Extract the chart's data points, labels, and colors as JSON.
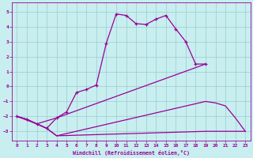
{
  "xlabel": "Windchill (Refroidissement éolien,°C)",
  "background_color": "#c8eef0",
  "grid_color": "#99cccc",
  "line_color": "#990099",
  "xlim": [
    -0.5,
    23.5
  ],
  "ylim": [
    -3.6,
    5.6
  ],
  "yticks": [
    -3,
    -2,
    -1,
    0,
    1,
    2,
    3,
    4,
    5
  ],
  "xticks": [
    0,
    1,
    2,
    3,
    4,
    5,
    6,
    7,
    8,
    9,
    10,
    11,
    12,
    13,
    14,
    15,
    16,
    17,
    18,
    19,
    20,
    21,
    22,
    23
  ],
  "line1_x": [
    0,
    1,
    2,
    3,
    4,
    5,
    6,
    7,
    8,
    9,
    10,
    11,
    12,
    13,
    14,
    15,
    16,
    17,
    18,
    19
  ],
  "line1_y": [
    -2.0,
    -2.2,
    -2.5,
    -2.8,
    -2.1,
    -1.7,
    -0.4,
    -0.2,
    0.1,
    2.9,
    4.85,
    4.75,
    4.2,
    4.15,
    4.5,
    4.75,
    3.85,
    3.0,
    1.5,
    1.5
  ],
  "line2_x": [
    0,
    2,
    4,
    19
  ],
  "line2_y": [
    -2.0,
    -2.5,
    -2.1,
    1.5
  ],
  "line3_x": [
    0,
    1,
    2,
    3,
    4,
    19,
    20,
    21,
    22,
    23
  ],
  "line3_y": [
    -2.0,
    -2.2,
    -2.5,
    -2.8,
    -3.3,
    -3.0,
    -3.0,
    -3.0,
    -3.0,
    -3.0
  ],
  "line4_x": [
    0,
    1,
    2,
    3,
    4,
    19,
    20,
    21,
    22,
    23
  ],
  "line4_y": [
    -2.0,
    -2.2,
    -2.5,
    -2.8,
    -3.3,
    -1.0,
    -1.1,
    -1.3,
    -2.1,
    -3.0
  ]
}
